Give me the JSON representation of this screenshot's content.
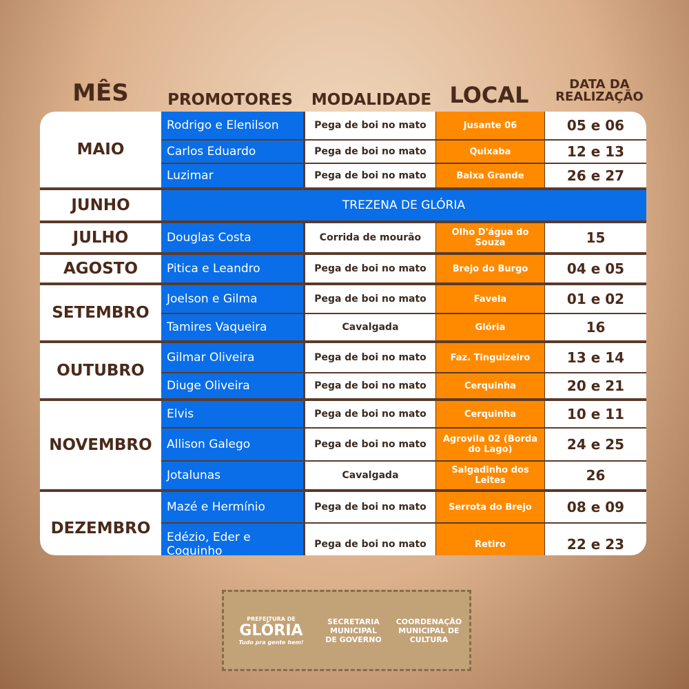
{
  "header": {
    "columns": [
      "MÊS",
      "PROMOTORES",
      "MODALIDADE",
      "LOCAL",
      "DATA DA REALIZAÇÃO"
    ]
  },
  "table": {
    "groups": [
      {
        "month": "MAIO",
        "rows": [
          [
            "Rodrigo e Elenilson",
            "Pega de boi no mato",
            "Jusante 06",
            "05 e 06"
          ],
          [
            "Carlos Eduardo",
            "Pega de boi no mato",
            "Quixaba",
            "12 e 13"
          ],
          [
            "Luzimar",
            "Pega de boi no mato",
            "Baixa Grande",
            "26 e 27"
          ]
        ]
      },
      {
        "month": "JUNHO",
        "note": "TREZENA DE GLÓRIA"
      },
      {
        "month": "JULHO",
        "rows": [
          [
            "Douglas Costa",
            "Corrida de mourão",
            "Olho D'água do Souza",
            "15"
          ]
        ]
      },
      {
        "month": "AGOSTO",
        "rows": [
          [
            "Pitica e Leandro",
            "Pega de boi no mato",
            "Brejo do Burgo",
            "04 e 05"
          ]
        ]
      },
      {
        "month": "SETEMBRO",
        "rows": [
          [
            "Joelson e Gilma",
            "Pega de boi no mato",
            "Favela",
            "01 e 02"
          ],
          [
            "Tamires Vaqueira",
            "Cavalgada",
            "Glória",
            "16"
          ]
        ]
      },
      {
        "month": "OUTUBRO",
        "rows": [
          [
            "Gilmar Oliveira",
            "Pega de boi no mato",
            "Faz. Tinguizeiro",
            "13 e 14"
          ],
          [
            "Diuge Oliveira",
            "Pega de boi no mato",
            "Cerquinha",
            "20 e 21"
          ]
        ]
      },
      {
        "month": "NOVEMBRO",
        "rows": [
          [
            "Elvis",
            "Pega de boi no mato",
            "Cerquinha",
            "10 e 11"
          ],
          [
            "Allison Galego",
            "Pega de boi no mato",
            "Agrovila 02 (Borda do Lago)",
            "24 e 25"
          ],
          [
            "Jotalunas",
            "Cavalgada",
            "Salgadinho dos Leites",
            "26"
          ]
        ]
      },
      {
        "month": "DEZEMBRO",
        "rows": [
          [
            "Mazé e Hermínio",
            "Pega de boi no mato",
            "Serrota do Brejo",
            "08 e 09"
          ],
          [
            "Edézio, Eder e Coquinho",
            "Pega de boi no mato",
            "Retiro",
            "22 e 23"
          ]
        ]
      }
    ]
  },
  "footer": {
    "logo_top": "PREFEITURA DE",
    "logo_name": "GLÓRIA",
    "logo_tagline": "Tudo pra gente bem!",
    "secretaria": "SECRETARIA MUNICIPAL DE GOVERNO",
    "coordenacao": "COORDENAÇÃO MUNICIPAL DE CULTURA"
  }
}
